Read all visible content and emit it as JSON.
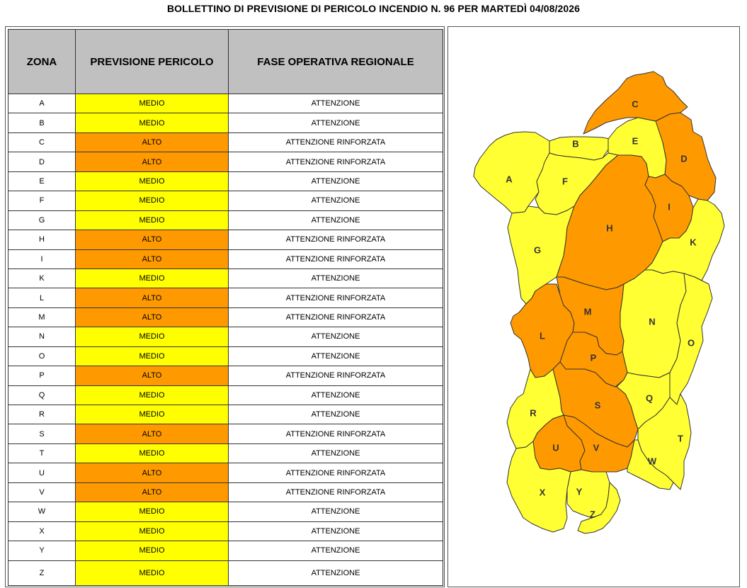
{
  "title": "BOLLETTINO DI PREVISIONE DI PERICOLO INCENDIO N. 96 PER MARTEDÌ 04/08/2026",
  "colors": {
    "medio": "#ffff00",
    "alto": "#ff9900",
    "header": "#c0c0c0",
    "map_yellow": "#ffff33",
    "map_orange": "#ff9900"
  },
  "table": {
    "headers": [
      "ZONA",
      "PREVISIONE PERICOLO",
      "FASE OPERATIVA REGIONALE"
    ],
    "rows": [
      {
        "zona": "A",
        "pericolo": "MEDIO",
        "fase": "ATTENZIONE"
      },
      {
        "zona": "B",
        "pericolo": "MEDIO",
        "fase": "ATTENZIONE"
      },
      {
        "zona": "C",
        "pericolo": "ALTO",
        "fase": "ATTENZIONE RINFORZATA"
      },
      {
        "zona": "D",
        "pericolo": "ALTO",
        "fase": "ATTENZIONE RINFORZATA"
      },
      {
        "zona": "E",
        "pericolo": "MEDIO",
        "fase": "ATTENZIONE"
      },
      {
        "zona": "F",
        "pericolo": "MEDIO",
        "fase": "ATTENZIONE"
      },
      {
        "zona": "G",
        "pericolo": "MEDIO",
        "fase": "ATTENZIONE"
      },
      {
        "zona": "H",
        "pericolo": "ALTO",
        "fase": "ATTENZIONE RINFORZATA"
      },
      {
        "zona": "I",
        "pericolo": "ALTO",
        "fase": "ATTENZIONE RINFORZATA"
      },
      {
        "zona": "K",
        "pericolo": "MEDIO",
        "fase": "ATTENZIONE"
      },
      {
        "zona": "L",
        "pericolo": "ALTO",
        "fase": "ATTENZIONE RINFORZATA"
      },
      {
        "zona": "M",
        "pericolo": "ALTO",
        "fase": "ATTENZIONE RINFORZATA"
      },
      {
        "zona": "N",
        "pericolo": "MEDIO",
        "fase": "ATTENZIONE"
      },
      {
        "zona": "O",
        "pericolo": "MEDIO",
        "fase": "ATTENZIONE"
      },
      {
        "zona": "P",
        "pericolo": "ALTO",
        "fase": "ATTENZIONE RINFORZATA"
      },
      {
        "zona": "Q",
        "pericolo": "MEDIO",
        "fase": "ATTENZIONE"
      },
      {
        "zona": "R",
        "pericolo": "MEDIO",
        "fase": "ATTENZIONE"
      },
      {
        "zona": "S",
        "pericolo": "ALTO",
        "fase": "ATTENZIONE RINFORZATA"
      },
      {
        "zona": "T",
        "pericolo": "MEDIO",
        "fase": "ATTENZIONE"
      },
      {
        "zona": "U",
        "pericolo": "ALTO",
        "fase": "ATTENZIONE RINFORZATA"
      },
      {
        "zona": "V",
        "pericolo": "ALTO",
        "fase": "ATTENZIONE RINFORZATA"
      },
      {
        "zona": "W",
        "pericolo": "MEDIO",
        "fase": "ATTENZIONE"
      },
      {
        "zona": "X",
        "pericolo": "MEDIO",
        "fase": "ATTENZIONE"
      },
      {
        "zona": "Y",
        "pericolo": "MEDIO",
        "fase": "ATTENZIONE"
      },
      {
        "zona": "Z",
        "pericolo": "MEDIO",
        "fase": "ATTENZIONE"
      }
    ]
  },
  "map": {
    "zones": [
      {
        "id": "A",
        "level": "MEDIO"
      },
      {
        "id": "B",
        "level": "MEDIO"
      },
      {
        "id": "C",
        "level": "ALTO"
      },
      {
        "id": "D",
        "level": "ALTO"
      },
      {
        "id": "E",
        "level": "MEDIO"
      },
      {
        "id": "F",
        "level": "MEDIO"
      },
      {
        "id": "G",
        "level": "MEDIO"
      },
      {
        "id": "H",
        "level": "ALTO"
      },
      {
        "id": "I",
        "level": "ALTO"
      },
      {
        "id": "K",
        "level": "MEDIO"
      },
      {
        "id": "L",
        "level": "ALTO"
      },
      {
        "id": "M",
        "level": "ALTO"
      },
      {
        "id": "N",
        "level": "MEDIO"
      },
      {
        "id": "O",
        "level": "MEDIO"
      },
      {
        "id": "P",
        "level": "ALTO"
      },
      {
        "id": "Q",
        "level": "MEDIO"
      },
      {
        "id": "R",
        "level": "MEDIO"
      },
      {
        "id": "S",
        "level": "ALTO"
      },
      {
        "id": "T",
        "level": "MEDIO"
      },
      {
        "id": "U",
        "level": "ALTO"
      },
      {
        "id": "V",
        "level": "ALTO"
      },
      {
        "id": "W",
        "level": "MEDIO"
      },
      {
        "id": "X",
        "level": "MEDIO"
      },
      {
        "id": "Y",
        "level": "MEDIO"
      },
      {
        "id": "Z",
        "level": "MEDIO"
      }
    ]
  }
}
